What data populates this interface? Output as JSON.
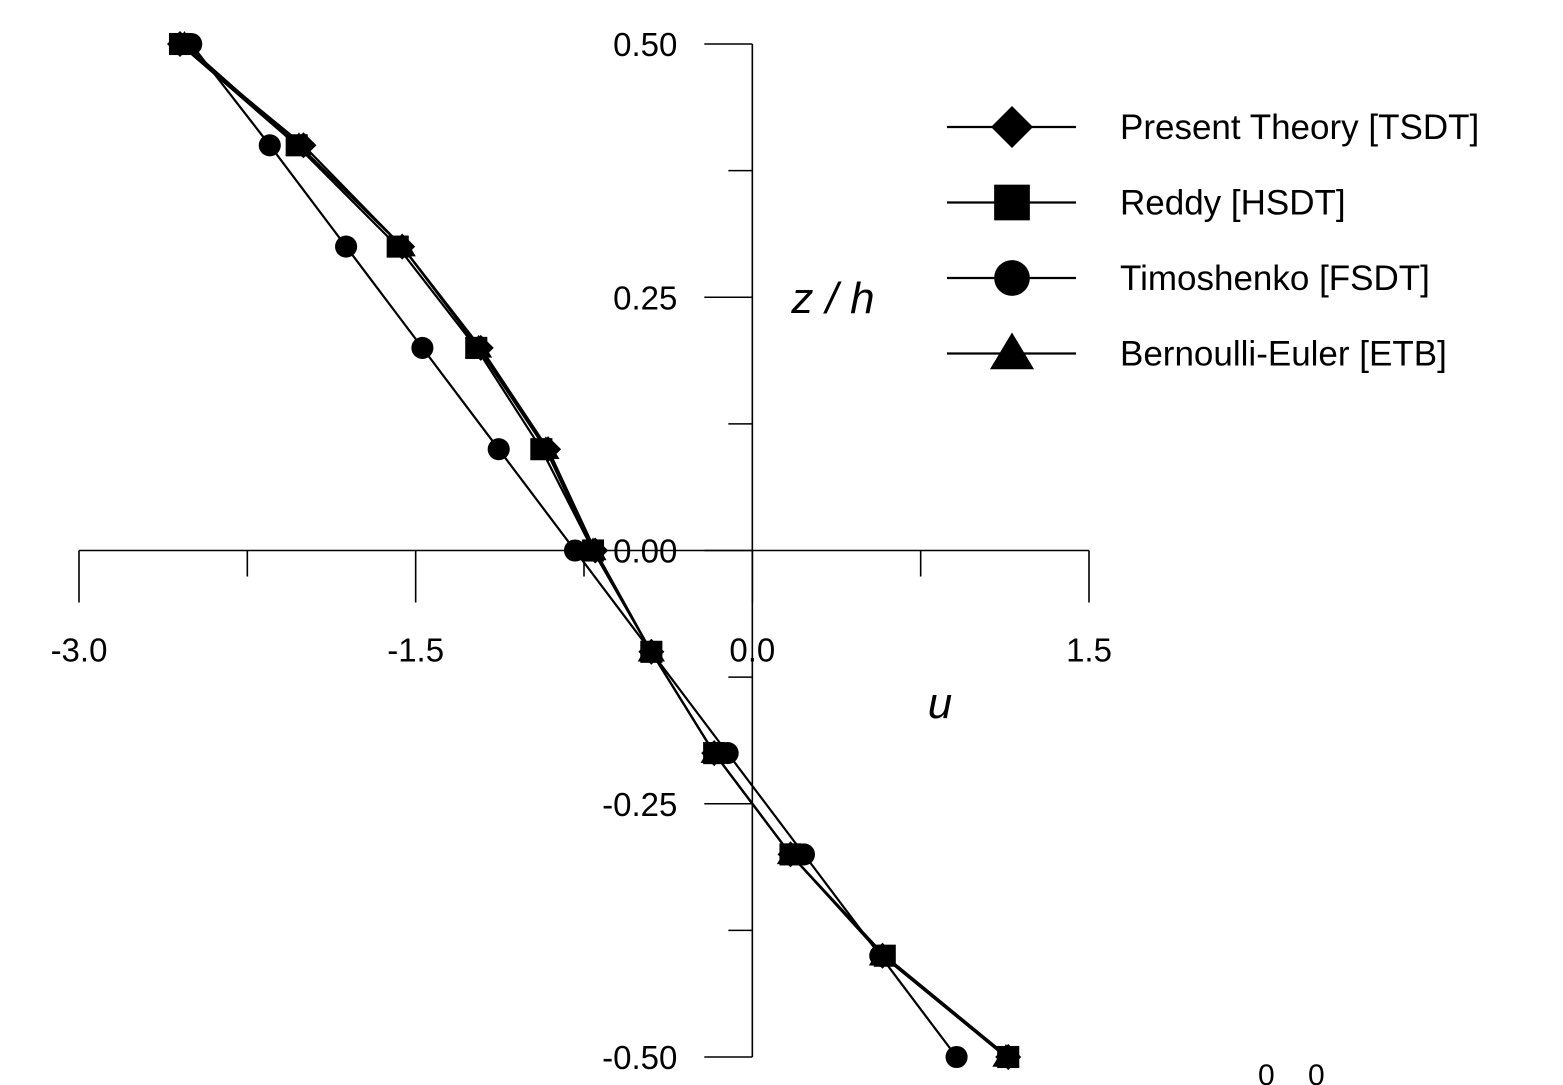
{
  "chart_data": {
    "type": "line",
    "xlabel": "u",
    "ylabel": "z / h",
    "xlim": [
      -3.0,
      1.5
    ],
    "ylim": [
      -0.5,
      0.5
    ],
    "x_tick_values": [
      -3.0,
      -1.5,
      0.0,
      1.5
    ],
    "x_tick_labels": [
      "-3.0",
      "-1.5",
      "0.0",
      "1.5"
    ],
    "x_minor_ticks": [
      -2.25,
      -0.75,
      0.75
    ],
    "y_tick_values": [
      0.5,
      0.25,
      0.0,
      -0.25,
      -0.5
    ],
    "y_tick_labels": [
      "0.50",
      "0.25",
      "0.00",
      "-0.25",
      "-0.50"
    ],
    "y_minor_ticks": [
      0.375,
      0.125,
      -0.125,
      -0.375
    ],
    "grid": false,
    "legend_position": "top-right",
    "corner_annotation": "0    0",
    "series": [
      {
        "name": "Present Theory [TSDT]",
        "marker": "diamond",
        "color": "#000000",
        "points": [
          [
            -2.55,
            0.5
          ],
          [
            -2.0,
            0.4
          ],
          [
            -1.56,
            0.3
          ],
          [
            -1.21,
            0.2
          ],
          [
            -0.91,
            0.1
          ],
          [
            -0.7,
            0.0
          ],
          [
            -0.45,
            -0.1
          ],
          [
            -0.17,
            -0.2
          ],
          [
            0.17,
            -0.3
          ],
          [
            0.58,
            -0.4
          ],
          [
            1.14,
            -0.5
          ]
        ]
      },
      {
        "name": "Reddy [HSDT]",
        "marker": "square",
        "color": "#000000",
        "points": [
          [
            -2.55,
            0.5
          ],
          [
            -2.03,
            0.4
          ],
          [
            -1.58,
            0.3
          ],
          [
            -1.23,
            0.2
          ],
          [
            -0.94,
            0.1
          ],
          [
            -0.71,
            0.0
          ],
          [
            -0.45,
            -0.1
          ],
          [
            -0.17,
            -0.2
          ],
          [
            0.17,
            -0.3
          ],
          [
            0.59,
            -0.4
          ],
          [
            1.14,
            -0.5
          ]
        ]
      },
      {
        "name": "Timoshenko [FSDT]",
        "marker": "circle",
        "color": "#000000",
        "points": [
          [
            -2.5,
            0.5
          ],
          [
            -2.15,
            0.4
          ],
          [
            -1.81,
            0.3
          ],
          [
            -1.47,
            0.2
          ],
          [
            -1.13,
            0.1
          ],
          [
            -0.79,
            0.0
          ],
          [
            -0.45,
            -0.1
          ],
          [
            -0.11,
            -0.2
          ],
          [
            0.23,
            -0.3
          ],
          [
            0.57,
            -0.4
          ],
          [
            0.91,
            -0.5
          ]
        ]
      },
      {
        "name": "Bernoulli-Euler [ETB]",
        "marker": "triangle",
        "color": "#000000",
        "points": [
          [
            -2.53,
            0.5
          ],
          [
            -2.02,
            0.4
          ],
          [
            -1.56,
            0.3
          ],
          [
            -1.22,
            0.2
          ],
          [
            -0.92,
            0.1
          ],
          [
            -0.71,
            0.0
          ],
          [
            -0.45,
            -0.1
          ],
          [
            -0.17,
            -0.2
          ],
          [
            0.17,
            -0.3
          ],
          [
            0.58,
            -0.4
          ],
          [
            1.13,
            -0.5
          ]
        ]
      }
    ]
  }
}
